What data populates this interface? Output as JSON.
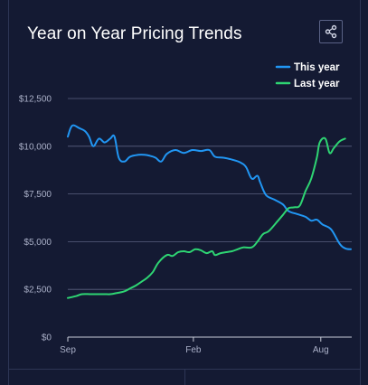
{
  "title": "Year on Year Pricing Trends",
  "share_icon": "share-icon",
  "colors": {
    "background": "#141a33",
    "this_year": "#2196f3",
    "last_year": "#2ed573",
    "grid": "#5a6080",
    "text": "#ffffff",
    "axis_text": "#aab0c8"
  },
  "chart_data": {
    "type": "line",
    "y_ticks": [
      "$12,500",
      "$10,000",
      "$7,500",
      "$5,000",
      "$2,500",
      "$0"
    ],
    "y_tick_values": [
      12500,
      10000,
      7500,
      5000,
      2500,
      0
    ],
    "x_ticks": [
      "Sep",
      "Feb",
      "Aug"
    ],
    "x_tick_positions": [
      0,
      0.4437,
      0.8939
    ],
    "ylim": [
      0,
      12500
    ],
    "legend_placement": "top-right",
    "series": [
      {
        "name": "This year",
        "color": "#2196f3",
        "points": [
          [
            0.0,
            10500
          ],
          [
            0.01,
            10950
          ],
          [
            0.02,
            11100
          ],
          [
            0.04,
            10950
          ],
          [
            0.06,
            10800
          ],
          [
            0.075,
            10500
          ],
          [
            0.09,
            10000
          ],
          [
            0.11,
            10400
          ],
          [
            0.13,
            10200
          ],
          [
            0.15,
            10400
          ],
          [
            0.165,
            10500
          ],
          [
            0.18,
            9400
          ],
          [
            0.2,
            9200
          ],
          [
            0.22,
            9450
          ],
          [
            0.25,
            9550
          ],
          [
            0.27,
            9550
          ],
          [
            0.29,
            9500
          ],
          [
            0.31,
            9400
          ],
          [
            0.33,
            9200
          ],
          [
            0.35,
            9600
          ],
          [
            0.38,
            9800
          ],
          [
            0.41,
            9650
          ],
          [
            0.44,
            9800
          ],
          [
            0.47,
            9750
          ],
          [
            0.5,
            9800
          ],
          [
            0.52,
            9450
          ],
          [
            0.55,
            9400
          ],
          [
            0.58,
            9300
          ],
          [
            0.61,
            9150
          ],
          [
            0.63,
            8900
          ],
          [
            0.65,
            8300
          ],
          [
            0.67,
            8450
          ],
          [
            0.68,
            8100
          ],
          [
            0.7,
            7450
          ],
          [
            0.73,
            7200
          ],
          [
            0.76,
            6950
          ],
          [
            0.78,
            6600
          ],
          [
            0.81,
            6450
          ],
          [
            0.84,
            6300
          ],
          [
            0.86,
            6100
          ],
          [
            0.88,
            6150
          ],
          [
            0.9,
            5900
          ],
          [
            0.93,
            5650
          ],
          [
            0.96,
            4900
          ],
          [
            0.98,
            4650
          ],
          [
            1.0,
            4600
          ]
        ]
      },
      {
        "name": "Last year",
        "color": "#2ed573",
        "points": [
          [
            0.0,
            2050
          ],
          [
            0.03,
            2150
          ],
          [
            0.05,
            2250
          ],
          [
            0.08,
            2250
          ],
          [
            0.1,
            2250
          ],
          [
            0.13,
            2250
          ],
          [
            0.15,
            2250
          ],
          [
            0.17,
            2300
          ],
          [
            0.2,
            2400
          ],
          [
            0.22,
            2550
          ],
          [
            0.24,
            2700
          ],
          [
            0.26,
            2900
          ],
          [
            0.28,
            3100
          ],
          [
            0.3,
            3400
          ],
          [
            0.32,
            3900
          ],
          [
            0.35,
            4300
          ],
          [
            0.37,
            4250
          ],
          [
            0.39,
            4450
          ],
          [
            0.41,
            4500
          ],
          [
            0.43,
            4450
          ],
          [
            0.45,
            4600
          ],
          [
            0.47,
            4550
          ],
          [
            0.49,
            4400
          ],
          [
            0.51,
            4500
          ],
          [
            0.52,
            4300
          ],
          [
            0.54,
            4400
          ],
          [
            0.56,
            4450
          ],
          [
            0.58,
            4500
          ],
          [
            0.6,
            4600
          ],
          [
            0.62,
            4700
          ],
          [
            0.65,
            4700
          ],
          [
            0.67,
            5000
          ],
          [
            0.69,
            5400
          ],
          [
            0.71,
            5550
          ],
          [
            0.74,
            6050
          ],
          [
            0.76,
            6400
          ],
          [
            0.78,
            6750
          ],
          [
            0.8,
            6800
          ],
          [
            0.82,
            6900
          ],
          [
            0.84,
            7650
          ],
          [
            0.86,
            8300
          ],
          [
            0.88,
            9400
          ],
          [
            0.89,
            10200
          ],
          [
            0.91,
            10400
          ],
          [
            0.925,
            9650
          ],
          [
            0.94,
            9900
          ],
          [
            0.96,
            10250
          ],
          [
            0.98,
            10400
          ]
        ]
      }
    ]
  }
}
